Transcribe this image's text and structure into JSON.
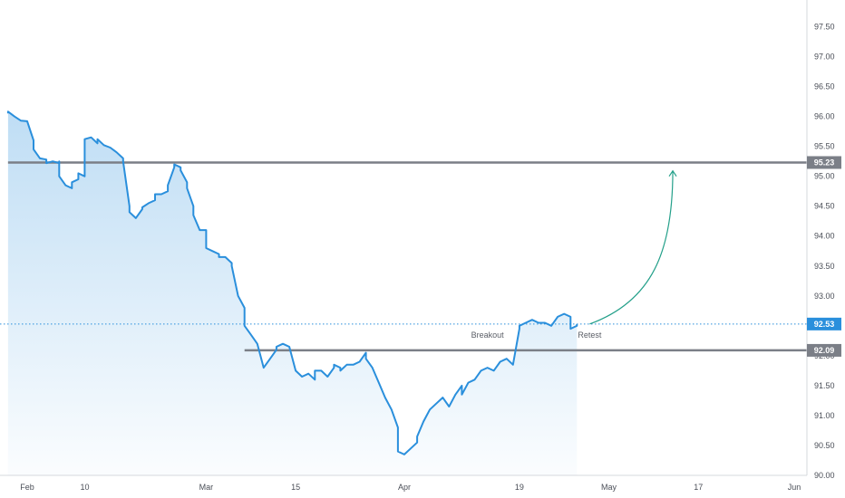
{
  "chart_data": {
    "type": "area",
    "title": "",
    "xlabel": "",
    "ylabel": "",
    "ylim": [
      90.0,
      97.75
    ],
    "yticks": [
      "90.00",
      "90.50",
      "91.00",
      "91.50",
      "92.00",
      "92.50",
      "93.00",
      "93.50",
      "94.00",
      "94.50",
      "95.00",
      "95.50",
      "96.00",
      "96.50",
      "97.00",
      "97.50"
    ],
    "xticks": [
      {
        "label": "Feb",
        "date": "2021-02-01"
      },
      {
        "label": "10",
        "date": "2021-02-10"
      },
      {
        "label": "Mar",
        "date": "2021-03-01"
      },
      {
        "label": "15",
        "date": "2021-03-15"
      },
      {
        "label": "Apr",
        "date": "2021-04-01"
      },
      {
        "label": "19",
        "date": "2021-04-19"
      },
      {
        "label": "May",
        "date": "2021-05-03"
      },
      {
        "label": "17",
        "date": "2021-05-17"
      },
      {
        "label": "Jun",
        "date": "2021-06-01"
      }
    ],
    "series": [
      {
        "color": "#2a8fdc",
        "points": [
          [
            "2021-01-29",
            96.05
          ],
          [
            "2021-01-29",
            96.08
          ],
          [
            "2021-01-30",
            96.0
          ],
          [
            "2021-01-31",
            95.93
          ],
          [
            "2021-02-01",
            95.92
          ],
          [
            "2021-02-02",
            95.6
          ],
          [
            "2021-02-02",
            95.45
          ],
          [
            "2021-02-03",
            95.3
          ],
          [
            "2021-02-04",
            95.28
          ],
          [
            "2021-02-04",
            95.22
          ],
          [
            "2021-02-05",
            95.25
          ],
          [
            "2021-02-06",
            95.22
          ],
          [
            "2021-02-06",
            95.25
          ],
          [
            "2021-02-06",
            95.0
          ],
          [
            "2021-02-07",
            94.85
          ],
          [
            "2021-02-08",
            94.8
          ],
          [
            "2021-02-08",
            94.9
          ],
          [
            "2021-02-09",
            94.95
          ],
          [
            "2021-02-09",
            95.05
          ],
          [
            "2021-02-10",
            95.0
          ],
          [
            "2021-02-10",
            95.62
          ],
          [
            "2021-02-11",
            95.65
          ],
          [
            "2021-02-12",
            95.55
          ],
          [
            "2021-02-12",
            95.62
          ],
          [
            "2021-02-13",
            95.52
          ],
          [
            "2021-02-14",
            95.48
          ],
          [
            "2021-02-15",
            95.4
          ],
          [
            "2021-02-16",
            95.3
          ],
          [
            "2021-02-16",
            95.25
          ],
          [
            "2021-02-17",
            94.5
          ],
          [
            "2021-02-17",
            94.4
          ],
          [
            "2021-02-18",
            94.3
          ],
          [
            "2021-02-19",
            94.45
          ],
          [
            "2021-02-19",
            94.48
          ],
          [
            "2021-02-20",
            94.55
          ],
          [
            "2021-02-21",
            94.6
          ],
          [
            "2021-02-21",
            94.7
          ],
          [
            "2021-02-22",
            94.7
          ],
          [
            "2021-02-23",
            94.75
          ],
          [
            "2021-02-23",
            94.85
          ],
          [
            "2021-02-24",
            95.15
          ],
          [
            "2021-02-24",
            95.2
          ],
          [
            "2021-02-25",
            95.15
          ],
          [
            "2021-02-25",
            95.1
          ],
          [
            "2021-02-26",
            94.9
          ],
          [
            "2021-02-26",
            94.8
          ],
          [
            "2021-02-27",
            94.5
          ],
          [
            "2021-02-27",
            94.35
          ],
          [
            "2021-02-28",
            94.1
          ],
          [
            "2021-03-01",
            94.1
          ],
          [
            "2021-03-01",
            93.8
          ],
          [
            "2021-03-02",
            93.75
          ],
          [
            "2021-03-03",
            93.7
          ],
          [
            "2021-03-03",
            93.65
          ],
          [
            "2021-03-04",
            93.65
          ],
          [
            "2021-03-05",
            93.55
          ],
          [
            "2021-03-05",
            93.5
          ],
          [
            "2021-03-06",
            93.0
          ],
          [
            "2021-03-07",
            92.8
          ],
          [
            "2021-03-07",
            92.5
          ],
          [
            "2021-03-08",
            92.35
          ],
          [
            "2021-03-09",
            92.2
          ],
          [
            "2021-03-10",
            91.8
          ],
          [
            "2021-03-11",
            91.95
          ],
          [
            "2021-03-12",
            92.1
          ],
          [
            "2021-03-12",
            92.15
          ],
          [
            "2021-03-13",
            92.2
          ],
          [
            "2021-03-14",
            92.15
          ],
          [
            "2021-03-15",
            91.75
          ],
          [
            "2021-03-16",
            91.65
          ],
          [
            "2021-03-17",
            91.7
          ],
          [
            "2021-03-18",
            91.6
          ],
          [
            "2021-03-18",
            91.75
          ],
          [
            "2021-03-19",
            91.75
          ],
          [
            "2021-03-20",
            91.65
          ],
          [
            "2021-03-21",
            91.8
          ],
          [
            "2021-03-21",
            91.85
          ],
          [
            "2021-03-22",
            91.8
          ],
          [
            "2021-03-22",
            91.75
          ],
          [
            "2021-03-23",
            91.85
          ],
          [
            "2021-03-24",
            91.85
          ],
          [
            "2021-03-25",
            91.9
          ],
          [
            "2021-03-26",
            92.05
          ],
          [
            "2021-03-26",
            91.95
          ],
          [
            "2021-03-27",
            91.8
          ],
          [
            "2021-03-28",
            91.55
          ],
          [
            "2021-03-29",
            91.3
          ],
          [
            "2021-03-30",
            91.1
          ],
          [
            "2021-03-31",
            90.8
          ],
          [
            "2021-03-31",
            90.4
          ],
          [
            "2021-04-01",
            90.35
          ],
          [
            "2021-04-02",
            90.45
          ],
          [
            "2021-04-03",
            90.55
          ],
          [
            "2021-04-03",
            90.65
          ],
          [
            "2021-04-04",
            90.9
          ],
          [
            "2021-04-05",
            91.1
          ],
          [
            "2021-04-06",
            91.2
          ],
          [
            "2021-04-07",
            91.3
          ],
          [
            "2021-04-08",
            91.15
          ],
          [
            "2021-04-09",
            91.35
          ],
          [
            "2021-04-10",
            91.5
          ],
          [
            "2021-04-10",
            91.35
          ],
          [
            "2021-04-11",
            91.55
          ],
          [
            "2021-04-12",
            91.6
          ],
          [
            "2021-04-13",
            91.75
          ],
          [
            "2021-04-14",
            91.8
          ],
          [
            "2021-04-15",
            91.75
          ],
          [
            "2021-04-16",
            91.9
          ],
          [
            "2021-04-17",
            91.95
          ],
          [
            "2021-04-18",
            91.85
          ],
          [
            "2021-04-19",
            92.45
          ],
          [
            "2021-04-19",
            92.5
          ],
          [
            "2021-04-20",
            92.55
          ],
          [
            "2021-04-21",
            92.6
          ],
          [
            "2021-04-22",
            92.55
          ],
          [
            "2021-04-23",
            92.55
          ],
          [
            "2021-04-24",
            92.5
          ],
          [
            "2021-04-25",
            92.65
          ],
          [
            "2021-04-26",
            92.7
          ],
          [
            "2021-04-27",
            92.65
          ],
          [
            "2021-04-27",
            92.45
          ],
          [
            "2021-04-28",
            92.5
          ],
          [
            "2021-04-28",
            92.53
          ]
        ]
      }
    ],
    "levels": [
      {
        "value": 95.23,
        "label": "95.23",
        "color": "#7b7f87",
        "start": "2021-01-29"
      },
      {
        "value": 92.09,
        "label": "92.09",
        "color": "#7b7f87",
        "start": "2021-03-07"
      }
    ],
    "last_price": {
      "value": 92.53,
      "label": "92.53",
      "color": "#2a8fdc"
    },
    "annotations": [
      {
        "text": "Breakout",
        "date": "2021-04-14",
        "y": 92.3
      },
      {
        "text": "Retest",
        "date": "2021-04-30",
        "y": 92.3
      }
    ],
    "arrow": {
      "from": {
        "date": "2021-04-30",
        "y": 92.53
      },
      "to": {
        "date": "2021-05-13",
        "y": 95.0
      },
      "color": "#24a08a"
    },
    "grid": false,
    "legend": "none"
  }
}
